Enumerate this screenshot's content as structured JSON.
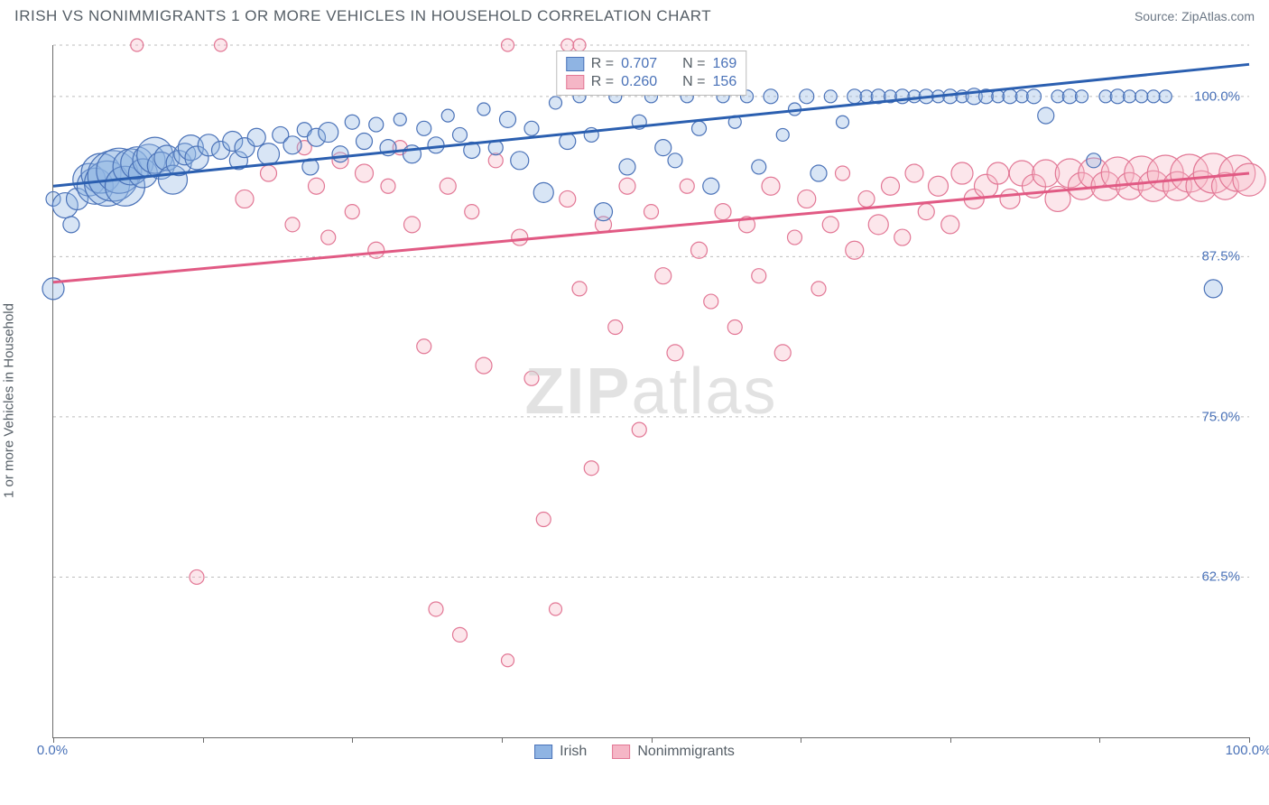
{
  "header": {
    "title": "IRISH VS NONIMMIGRANTS 1 OR MORE VEHICLES IN HOUSEHOLD CORRELATION CHART",
    "source": "Source: ZipAtlas.com"
  },
  "chart": {
    "type": "scatter",
    "ylabel": "1 or more Vehicles in Household",
    "xlim": [
      0,
      100
    ],
    "ylim": [
      50,
      104
    ],
    "x_ticks": [
      0,
      12.5,
      25,
      37.5,
      50,
      62.5,
      75,
      87.5,
      100
    ],
    "x_tick_labels_shown": {
      "0": "0.0%",
      "100": "100.0%"
    },
    "y_ticks": [
      62.5,
      75.0,
      87.5,
      100.0
    ],
    "y_tick_labels": [
      "62.5%",
      "75.0%",
      "87.5%",
      "100.0%"
    ],
    "grid_color": "#bdbdbd",
    "background_color": "#ffffff",
    "axis_label_color": "#4a72b8",
    "text_color": "#555e66",
    "watermark": "ZIPatlas",
    "series": [
      {
        "name": "Irish",
        "color_fill": "#8fb4e3",
        "color_stroke": "#4a72b8",
        "legend_label": "Irish",
        "stats": {
          "R": "0.707",
          "N": "169"
        },
        "trend": {
          "x1": 0,
          "y1": 93.0,
          "x2": 100,
          "y2": 102.5,
          "color": "#2b5fb0"
        },
        "points": [
          [
            0,
            92,
            8
          ],
          [
            1,
            91.5,
            14
          ],
          [
            1.5,
            90,
            9
          ],
          [
            2,
            92,
            12
          ],
          [
            3,
            93.5,
            18
          ],
          [
            3.5,
            93,
            20
          ],
          [
            4,
            94,
            22
          ],
          [
            4.5,
            93.2,
            25
          ],
          [
            5,
            93.8,
            28
          ],
          [
            5.5,
            94.2,
            25
          ],
          [
            6,
            93,
            22
          ],
          [
            6.5,
            94.5,
            20
          ],
          [
            7,
            94.8,
            18
          ],
          [
            7.5,
            94,
            16
          ],
          [
            8,
            95,
            18
          ],
          [
            8.5,
            95.4,
            20
          ],
          [
            9,
            94.6,
            15
          ],
          [
            9.5,
            95.2,
            14
          ],
          [
            10,
            93.5,
            16
          ],
          [
            10.5,
            94.8,
            14
          ],
          [
            11,
            95.5,
            12
          ],
          [
            11.5,
            96,
            14
          ],
          [
            12,
            95.2,
            13
          ],
          [
            13,
            96.2,
            12
          ],
          [
            14,
            95.8,
            10
          ],
          [
            15,
            96.5,
            11
          ],
          [
            15.5,
            95,
            10
          ],
          [
            16,
            96,
            11
          ],
          [
            17,
            96.8,
            10
          ],
          [
            18,
            95.5,
            12
          ],
          [
            19,
            97,
            9
          ],
          [
            20,
            96.2,
            10
          ],
          [
            21,
            97.4,
            8
          ],
          [
            21.5,
            94.5,
            9
          ],
          [
            22,
            96.8,
            10
          ],
          [
            23,
            97.2,
            11
          ],
          [
            24,
            95.5,
            9
          ],
          [
            25,
            98,
            8
          ],
          [
            26,
            96.5,
            9
          ],
          [
            27,
            97.8,
            8
          ],
          [
            28,
            96,
            9
          ],
          [
            29,
            98.2,
            7
          ],
          [
            30,
            95.5,
            10
          ],
          [
            31,
            97.5,
            8
          ],
          [
            32,
            96.2,
            9
          ],
          [
            33,
            98.5,
            7
          ],
          [
            34,
            97,
            8
          ],
          [
            35,
            95.8,
            9
          ],
          [
            36,
            99,
            7
          ],
          [
            37,
            96,
            8
          ],
          [
            38,
            98.2,
            9
          ],
          [
            39,
            95,
            10
          ],
          [
            40,
            97.5,
            8
          ],
          [
            41,
            92.5,
            11
          ],
          [
            42,
            99.5,
            7
          ],
          [
            43,
            96.5,
            9
          ],
          [
            44,
            100,
            7
          ],
          [
            45,
            97,
            8
          ],
          [
            46,
            91,
            10
          ],
          [
            47,
            100,
            7
          ],
          [
            48,
            94.5,
            9
          ],
          [
            49,
            98,
            8
          ],
          [
            50,
            100,
            7
          ],
          [
            51,
            96,
            9
          ],
          [
            52,
            95,
            8
          ],
          [
            53,
            100,
            7
          ],
          [
            54,
            97.5,
            8
          ],
          [
            55,
            93,
            9
          ],
          [
            56,
            100,
            7
          ],
          [
            57,
            98,
            7
          ],
          [
            58,
            100,
            7
          ],
          [
            59,
            94.5,
            8
          ],
          [
            60,
            100,
            8
          ],
          [
            61,
            97,
            7
          ],
          [
            62,
            99,
            7
          ],
          [
            63,
            100,
            8
          ],
          [
            64,
            94,
            9
          ],
          [
            65,
            100,
            7
          ],
          [
            66,
            98,
            7
          ],
          [
            67,
            100,
            8
          ],
          [
            68,
            100,
            7
          ],
          [
            69,
            100,
            8
          ],
          [
            70,
            100,
            7
          ],
          [
            71,
            100,
            8
          ],
          [
            72,
            100,
            7
          ],
          [
            73,
            100,
            8
          ],
          [
            74,
            100,
            7
          ],
          [
            75,
            100,
            8
          ],
          [
            76,
            100,
            7
          ],
          [
            77,
            100,
            9
          ],
          [
            78,
            100,
            8
          ],
          [
            79,
            100,
            7
          ],
          [
            80,
            100,
            8
          ],
          [
            81,
            100,
            7
          ],
          [
            82,
            100,
            8
          ],
          [
            83,
            98.5,
            9
          ],
          [
            84,
            100,
            7
          ],
          [
            85,
            100,
            8
          ],
          [
            86,
            100,
            7
          ],
          [
            87,
            95,
            8
          ],
          [
            88,
            100,
            7
          ],
          [
            89,
            100,
            8
          ],
          [
            90,
            100,
            7
          ],
          [
            91,
            100,
            7
          ],
          [
            92,
            100,
            7
          ],
          [
            93,
            100,
            7
          ],
          [
            97,
            85,
            10
          ],
          [
            0,
            85,
            12
          ]
        ]
      },
      {
        "name": "Nonimmigrants",
        "color_fill": "#f5b6c6",
        "color_stroke": "#e27795",
        "legend_label": "Nonimmigrants",
        "stats": {
          "R": "0.260",
          "N": "156"
        },
        "trend": {
          "x1": 0,
          "y1": 85.5,
          "x2": 100,
          "y2": 94.0,
          "color": "#e15a84"
        },
        "points": [
          [
            7,
            104,
            7
          ],
          [
            12,
            62.5,
            8
          ],
          [
            14,
            104,
            7
          ],
          [
            16,
            92,
            10
          ],
          [
            18,
            94,
            9
          ],
          [
            20,
            90,
            8
          ],
          [
            21,
            96,
            8
          ],
          [
            22,
            93,
            9
          ],
          [
            23,
            89,
            8
          ],
          [
            24,
            95,
            9
          ],
          [
            25,
            91,
            8
          ],
          [
            26,
            94,
            10
          ],
          [
            27,
            88,
            9
          ],
          [
            28,
            93,
            8
          ],
          [
            29,
            96,
            8
          ],
          [
            30,
            90,
            9
          ],
          [
            31,
            80.5,
            8
          ],
          [
            32,
            60,
            8
          ],
          [
            33,
            93,
            9
          ],
          [
            34,
            58,
            8
          ],
          [
            35,
            91,
            8
          ],
          [
            36,
            79,
            9
          ],
          [
            37,
            95,
            8
          ],
          [
            38,
            56,
            7
          ],
          [
            39,
            89,
            9
          ],
          [
            40,
            78,
            8
          ],
          [
            41,
            67,
            8
          ],
          [
            42,
            60,
            7
          ],
          [
            43,
            92,
            9
          ],
          [
            44,
            85,
            8
          ],
          [
            45,
            71,
            8
          ],
          [
            46,
            90,
            9
          ],
          [
            47,
            82,
            8
          ],
          [
            48,
            93,
            9
          ],
          [
            49,
            74,
            8
          ],
          [
            50,
            91,
            8
          ],
          [
            51,
            86,
            9
          ],
          [
            52,
            80,
            9
          ],
          [
            53,
            93,
            8
          ],
          [
            54,
            88,
            9
          ],
          [
            55,
            84,
            8
          ],
          [
            56,
            91,
            9
          ],
          [
            57,
            82,
            8
          ],
          [
            58,
            90,
            9
          ],
          [
            59,
            86,
            8
          ],
          [
            60,
            93,
            10
          ],
          [
            61,
            80,
            9
          ],
          [
            62,
            89,
            8
          ],
          [
            63,
            92,
            10
          ],
          [
            64,
            85,
            8
          ],
          [
            65,
            90,
            9
          ],
          [
            66,
            94,
            8
          ],
          [
            67,
            88,
            10
          ],
          [
            68,
            92,
            9
          ],
          [
            69,
            90,
            11
          ],
          [
            70,
            93,
            10
          ],
          [
            71,
            89,
            9
          ],
          [
            72,
            94,
            10
          ],
          [
            73,
            91,
            9
          ],
          [
            74,
            93,
            11
          ],
          [
            75,
            90,
            10
          ],
          [
            76,
            94,
            12
          ],
          [
            77,
            92,
            11
          ],
          [
            78,
            93,
            13
          ],
          [
            79,
            94,
            12
          ],
          [
            80,
            92,
            11
          ],
          [
            81,
            94,
            14
          ],
          [
            82,
            93,
            13
          ],
          [
            83,
            94,
            15
          ],
          [
            84,
            92,
            14
          ],
          [
            85,
            94,
            16
          ],
          [
            86,
            93,
            15
          ],
          [
            87,
            94,
            17
          ],
          [
            88,
            93,
            16
          ],
          [
            89,
            94,
            18
          ],
          [
            90,
            93,
            15
          ],
          [
            91,
            94,
            19
          ],
          [
            92,
            93,
            17
          ],
          [
            93,
            94,
            20
          ],
          [
            94,
            93,
            16
          ],
          [
            95,
            94,
            21
          ],
          [
            96,
            93,
            17
          ],
          [
            97,
            94,
            22
          ],
          [
            98,
            93,
            15
          ],
          [
            99,
            94,
            20
          ],
          [
            100,
            93.5,
            18
          ],
          [
            43,
            104,
            7
          ],
          [
            44,
            104,
            7
          ],
          [
            38,
            104,
            7
          ]
        ]
      }
    ]
  },
  "stat_legend": {
    "rows": [
      {
        "swatch_fill": "#8fb4e3",
        "swatch_border": "#4a72b8",
        "r_label": "R =",
        "r_val": "0.707",
        "n_label": "N =",
        "n_val": "169"
      },
      {
        "swatch_fill": "#f5b6c6",
        "swatch_border": "#e27795",
        "r_label": "R =",
        "r_val": "0.260",
        "n_label": "N =",
        "n_val": "156"
      }
    ]
  },
  "bottom_legend": {
    "items": [
      {
        "swatch_fill": "#8fb4e3",
        "swatch_border": "#4a72b8",
        "label": "Irish"
      },
      {
        "swatch_fill": "#f5b6c6",
        "swatch_border": "#e27795",
        "label": "Nonimmigrants"
      }
    ]
  }
}
